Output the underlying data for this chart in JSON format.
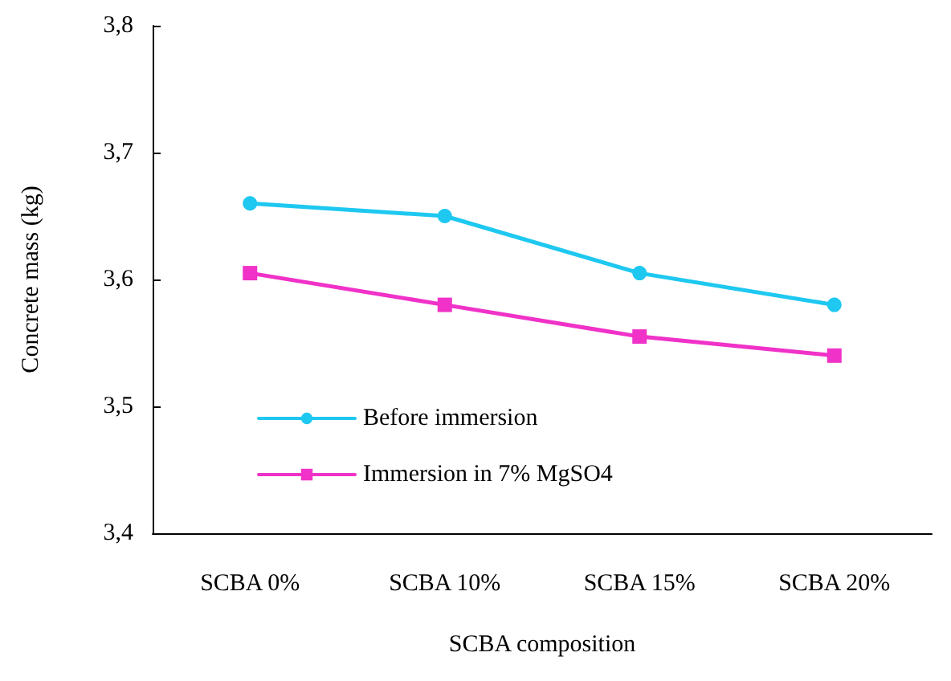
{
  "chart_data": {
    "type": "line",
    "xlabel": "SCBA composition",
    "ylabel": "Concrete mass (kg)",
    "categories": [
      "SCBA 0%",
      "SCBA 10%",
      "SCBA 15%",
      "SCBA 20%"
    ],
    "series": [
      {
        "name": "Before immersion",
        "color": "#1ec8f0",
        "marker": "circle",
        "values": [
          3.66,
          3.65,
          3.605,
          3.58
        ]
      },
      {
        "name": "Immersion in 7% MgSO4",
        "color": "#f032c8",
        "marker": "square",
        "values": [
          3.605,
          3.58,
          3.555,
          3.54
        ]
      }
    ],
    "ylim": [
      3.4,
      3.8
    ],
    "yticks": [
      {
        "value": 3.4,
        "label": "3,4"
      },
      {
        "value": 3.5,
        "label": "3,5"
      },
      {
        "value": 3.6,
        "label": "3,6"
      },
      {
        "value": 3.7,
        "label": "3,7"
      },
      {
        "value": 3.8,
        "label": "3,8"
      }
    ],
    "grid": false,
    "legend": "bottom left",
    "line_style": "solid"
  }
}
